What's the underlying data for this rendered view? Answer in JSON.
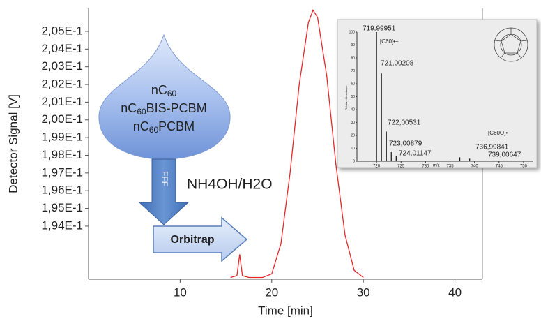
{
  "chart_data": [
    {
      "type": "line",
      "x_label": "Time [min]",
      "y_label": "Detector Signal [V]",
      "xlim": [
        0,
        43
      ],
      "xticks": [
        10,
        20,
        30,
        40
      ],
      "ylim": [
        0.191,
        0.2063
      ],
      "yticks": [
        {
          "value": 0.194,
          "label": "1,94E-1"
        },
        {
          "value": 0.195,
          "label": "1,95E-1"
        },
        {
          "value": 0.196,
          "label": "1,96E-1"
        },
        {
          "value": 0.197,
          "label": "1,97E-1"
        },
        {
          "value": 0.198,
          "label": "1,98E-1"
        },
        {
          "value": 0.199,
          "label": "1,99E-1"
        },
        {
          "value": 0.2,
          "label": "2,00E-1"
        },
        {
          "value": 0.201,
          "label": "2,01E-1"
        },
        {
          "value": 0.202,
          "label": "2,02E-1"
        },
        {
          "value": 0.203,
          "label": "2,03E-1"
        },
        {
          "value": 0.204,
          "label": "2,04E-1"
        },
        {
          "value": 0.205,
          "label": "2,05E-1"
        }
      ],
      "x": [
        15.5,
        16.2,
        16.5,
        16.8,
        17.5,
        19,
        20,
        21,
        22,
        23,
        24,
        24.5,
        25,
        26,
        27,
        28,
        29,
        30
      ],
      "series": [
        {
          "color": "#e8262a",
          "values": [
            0.1911,
            0.1912,
            0.1924,
            0.1912,
            0.1911,
            0.1911,
            0.1913,
            0.193,
            0.197,
            0.202,
            0.2055,
            0.2062,
            0.2058,
            0.2025,
            0.1975,
            0.1935,
            0.1915,
            0.1911
          ]
        }
      ],
      "annotations": {
        "drop": [
          {
            "prefix": "nC",
            "sub": "60",
            "suffix": ""
          },
          {
            "prefix": "nC",
            "sub": "60",
            "suffix": "BIS-PCBM"
          },
          {
            "prefix": "nC",
            "sub": "60",
            "suffix": "PCBM"
          }
        ],
        "arrow_down": "FFF",
        "eluent": "NH4OH/H2O",
        "arrow_right": "Orbitrap"
      }
    },
    {
      "type": "stem",
      "x_label": "m/z",
      "y_label": "Relative Abundance",
      "xlim": [
        716,
        752
      ],
      "xticks": [
        720,
        725,
        730,
        735,
        740,
        745,
        750
      ],
      "ylim": [
        0,
        100
      ],
      "yticks": [
        0,
        10,
        20,
        30,
        40,
        50,
        60,
        70,
        80,
        90,
        100
      ],
      "x": [
        719.99951,
        721.00208,
        722.00531,
        723.00879,
        724.01147,
        736.99841,
        739.00647
      ],
      "x_labels": [
        "719,99951",
        "721,00208",
        "722,00531",
        "723,00879",
        "724,01147",
        "736,99841",
        "739,00647"
      ],
      "values": [
        100,
        68,
        23,
        7,
        4,
        3,
        2
      ],
      "color": "#111111",
      "annotations": [
        "[C60]•−",
        "[C60O]•−"
      ]
    }
  ]
}
